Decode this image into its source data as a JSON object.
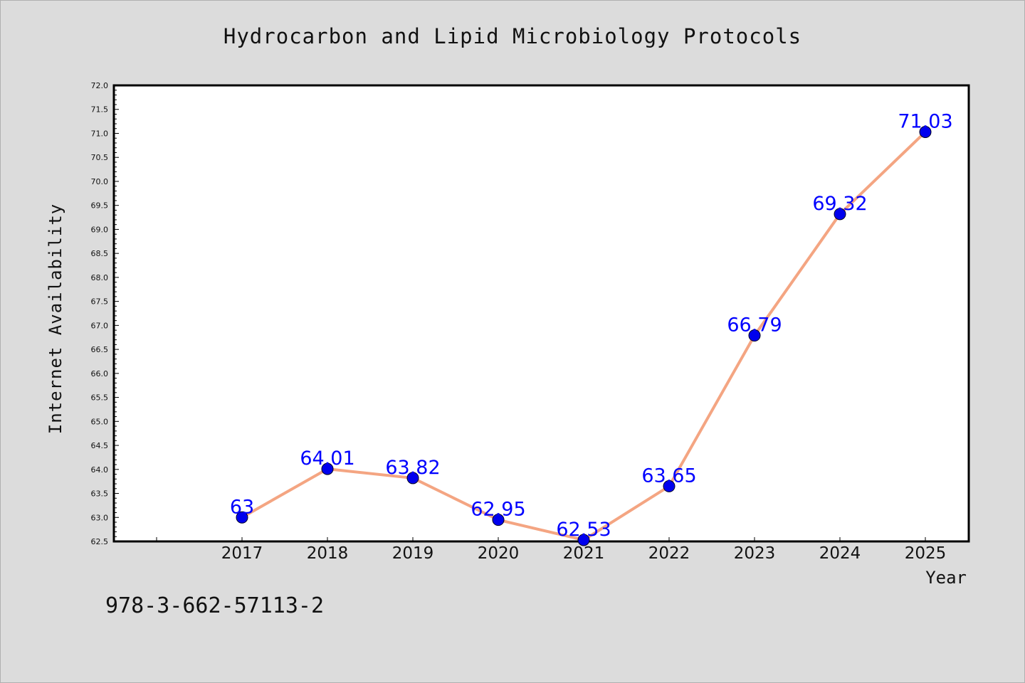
{
  "chart_data": {
    "type": "line",
    "title": "Hydrocarbon and Lipid Microbiology Protocols",
    "xlabel": "Year",
    "ylabel": "Internet Availability",
    "categories": [
      "2017",
      "2018",
      "2019",
      "2020",
      "2021",
      "2022",
      "2023",
      "2024",
      "2025"
    ],
    "values": [
      63,
      64.01,
      63.82,
      62.95,
      62.53,
      63.65,
      66.79,
      69.32,
      71.03
    ],
    "data_labels": [
      "63",
      "64.01",
      "63.82",
      "62.95",
      "62.53",
      "63.65",
      "66.79",
      "69.32",
      "71.03"
    ],
    "ylim": [
      62.5,
      72.0
    ],
    "y_ticks": [
      "62.5",
      "63.0",
      "63.5",
      "64.0",
      "64.5",
      "65.0",
      "65.5",
      "66.0",
      "66.5",
      "67.0",
      "67.5",
      "68.0",
      "68.5",
      "69.0",
      "69.5",
      "70.0",
      "70.5",
      "71.0",
      "71.5",
      "72.0"
    ],
    "grid": false,
    "legend": "none",
    "colors": {
      "line": "#f4a582",
      "marker": "#0000ee",
      "label": "#0000ff",
      "plot_bg": "#ffffff",
      "page_bg": "#dcdcdc"
    }
  },
  "footer": {
    "isbn": "978-3-662-57113-2"
  }
}
